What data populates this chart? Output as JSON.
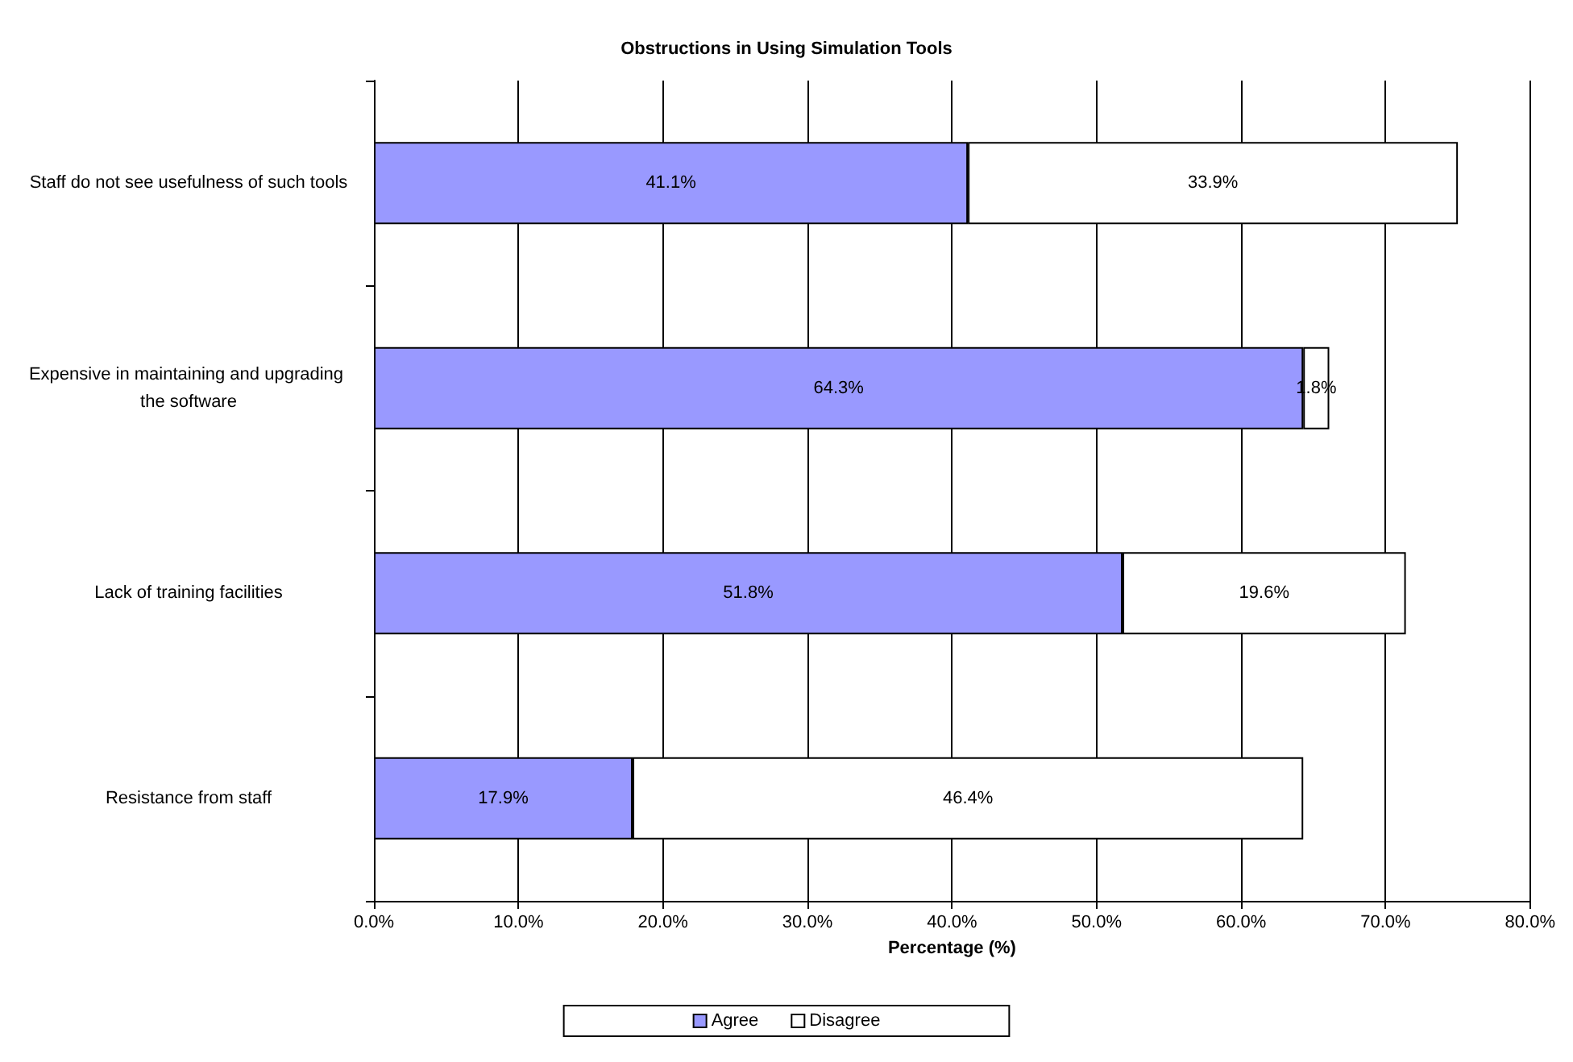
{
  "chart_data": {
    "type": "bar",
    "orientation": "horizontal",
    "stacked": true,
    "title": "Obstructions in Using Simulation Tools",
    "xlabel": "Percentage (%)",
    "categories": [
      "Staff do not see usefulness of such tools",
      "Expensive in maintaining and upgrading the software",
      "Lack of training facilities",
      "Resistance from staff"
    ],
    "series": [
      {
        "name": "Agree",
        "color": "#9999ff",
        "values": [
          41.1,
          64.3,
          51.8,
          17.9
        ],
        "value_labels": [
          "41.1%",
          "64.3%",
          "51.8%",
          "17.9%"
        ]
      },
      {
        "name": "Disagree",
        "color": "#ffffff",
        "values": [
          33.9,
          1.8,
          19.6,
          46.4
        ],
        "value_labels": [
          "33.9%",
          "1.8%",
          "19.6%",
          "46.4%"
        ]
      }
    ],
    "xlim": [
      0,
      80
    ],
    "xticks": [
      {
        "value": 0,
        "label": "0.0%"
      },
      {
        "value": 10,
        "label": "10.0%"
      },
      {
        "value": 20,
        "label": "20.0%"
      },
      {
        "value": 30,
        "label": "30.0%"
      },
      {
        "value": 40,
        "label": "40.0%"
      },
      {
        "value": 50,
        "label": "50.0%"
      },
      {
        "value": 60,
        "label": "60.0%"
      },
      {
        "value": 70,
        "label": "70.0%"
      },
      {
        "value": 80,
        "label": "80.0%"
      }
    ],
    "grid": "x",
    "legend": "bottom"
  }
}
